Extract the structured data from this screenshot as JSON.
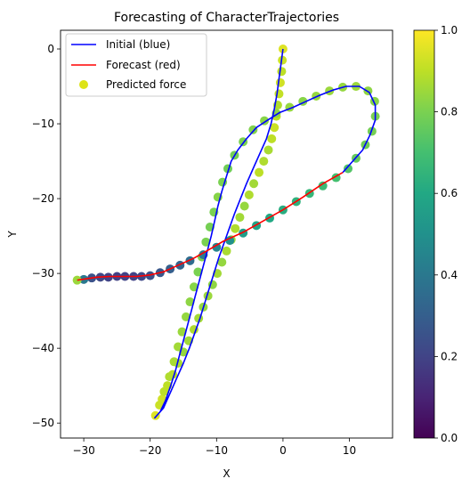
{
  "chart_data": {
    "type": "scatter",
    "title": "Forecasting of CharacterTrajectories",
    "xlabel": "X",
    "ylabel": "Y",
    "xlim": [
      -33.5,
      16.5
    ],
    "ylim": [
      -52,
      2.5
    ],
    "xticks": [
      -30,
      -20,
      -10,
      0,
      10
    ],
    "yticks": [
      0,
      -10,
      -20,
      -30,
      -40,
      -50
    ],
    "grid": false,
    "legend": {
      "placement": "top-left",
      "entries": [
        {
          "label": "Initial (blue)",
          "color": "#0000ff",
          "kind": "line"
        },
        {
          "label": "Forecast (red)",
          "color": "#ff0000",
          "kind": "line"
        },
        {
          "label": "Predicted force",
          "color": "#dde318",
          "kind": "marker"
        }
      ]
    },
    "colorbar": {
      "colormap": "viridis",
      "min": 0.0,
      "max": 1.0,
      "ticks": [
        "0.0",
        "0.2",
        "0.4",
        "0.6",
        "0.8",
        "1.0"
      ]
    },
    "series": [
      {
        "name": "Initial (blue)",
        "type": "line",
        "color": "#0000ff",
        "points": [
          [
            0,
            0
          ],
          [
            -0.3,
            -2
          ],
          [
            -0.6,
            -4
          ],
          [
            -0.9,
            -6
          ],
          [
            -1.3,
            -8
          ],
          [
            -1.8,
            -10
          ],
          [
            -2.5,
            -12
          ],
          [
            -3.5,
            -14
          ],
          [
            -4.5,
            -16
          ],
          [
            -5.5,
            -18
          ],
          [
            -6.4,
            -20
          ],
          [
            -7.3,
            -22
          ],
          [
            -8.1,
            -24
          ],
          [
            -8.9,
            -26
          ],
          [
            -9.7,
            -28
          ],
          [
            -10.4,
            -30
          ],
          [
            -11.1,
            -32
          ],
          [
            -11.8,
            -34
          ],
          [
            -12.5,
            -36
          ],
          [
            -13.3,
            -38
          ],
          [
            -14.1,
            -40
          ],
          [
            -15,
            -42
          ],
          [
            -16,
            -44
          ],
          [
            -17,
            -46
          ],
          [
            -18,
            -48
          ],
          [
            -19.3,
            -49.3
          ],
          [
            -19.3,
            -49.3
          ],
          [
            -18.5,
            -48.5
          ],
          [
            -17.7,
            -47
          ],
          [
            -16.9,
            -45
          ],
          [
            -16.2,
            -43
          ],
          [
            -15.6,
            -41
          ],
          [
            -15,
            -39
          ],
          [
            -14.4,
            -37
          ],
          [
            -13.8,
            -35
          ],
          [
            -13.2,
            -33
          ],
          [
            -12.6,
            -31
          ],
          [
            -12,
            -29
          ],
          [
            -11.4,
            -27
          ],
          [
            -10.8,
            -25
          ],
          [
            -10.3,
            -23
          ],
          [
            -9.8,
            -21
          ],
          [
            -9.2,
            -19
          ],
          [
            -8.5,
            -17
          ],
          [
            -7.8,
            -15
          ],
          [
            -6.8,
            -13.5
          ],
          [
            -5.5,
            -12
          ],
          [
            -4,
            -10.5
          ],
          [
            -2.3,
            -9.5
          ],
          [
            -0.5,
            -8.5
          ],
          [
            1.5,
            -7.8
          ],
          [
            3.5,
            -7
          ],
          [
            5.5,
            -6.2
          ],
          [
            7.5,
            -5.5
          ],
          [
            9.5,
            -5
          ],
          [
            11.5,
            -5
          ],
          [
            13,
            -5.8
          ],
          [
            13.9,
            -7.5
          ],
          [
            13.9,
            -9.5
          ],
          [
            13.1,
            -11.5
          ],
          [
            12,
            -13.5
          ],
          [
            10.5,
            -15
          ],
          [
            9,
            -16.5
          ]
        ]
      },
      {
        "name": "Forecast (red)",
        "type": "line",
        "color": "#ff0000",
        "points": [
          [
            9,
            -16.5
          ],
          [
            6,
            -18
          ],
          [
            3,
            -19.8
          ],
          [
            0,
            -21.5
          ],
          [
            -3,
            -23
          ],
          [
            -6,
            -24.5
          ],
          [
            -9,
            -25.7
          ],
          [
            -11.5,
            -27
          ],
          [
            -13.5,
            -28
          ],
          [
            -16,
            -29
          ],
          [
            -18,
            -29.8
          ],
          [
            -20,
            -30.2
          ],
          [
            -22,
            -30.4
          ],
          [
            -24,
            -30.4
          ],
          [
            -26,
            -30.4
          ],
          [
            -28,
            -30.5
          ],
          [
            -31,
            -30.9
          ]
        ]
      },
      {
        "name": "Predicted force",
        "type": "scatter",
        "x": [
          0,
          -0.1,
          -0.2,
          -0.4,
          -0.6,
          -0.8,
          -1,
          -1.3,
          -1.7,
          -2.2,
          -2.9,
          -3.6,
          -4.4,
          -5.1,
          -5.8,
          -6.5,
          -7.2,
          -7.8,
          -8.5,
          -9.2,
          -9.9,
          -10.6,
          -11.3,
          -12,
          -12.7,
          -13.4,
          -14.2,
          -15,
          -15.8,
          -16.6,
          -17.4,
          -18.2,
          -19.2,
          -18.6,
          -17.9,
          -17.1,
          -16.4,
          -15.8,
          -15.2,
          -14.6,
          -14,
          -13.4,
          -12.8,
          -12.2,
          -11.6,
          -11,
          -10.4,
          -9.8,
          -9.1,
          -8.3,
          -7.3,
          -6,
          -4.5,
          -2.8,
          -1,
          1,
          3,
          5,
          7,
          9,
          11,
          12.8,
          13.8,
          13.9,
          13.4,
          12.4,
          11,
          9.8,
          8,
          6,
          4,
          2,
          0,
          -2,
          -4,
          -6,
          -8,
          -10,
          -12,
          -14,
          -15.5,
          -17,
          -18.5,
          -20,
          -21.3,
          -22.5,
          -23.8,
          -25,
          -26.3,
          -27.5,
          -28.8,
          -30,
          -31
        ],
        "y": [
          0,
          -1.5,
          -3,
          -4.5,
          -6,
          -7.5,
          -9,
          -10.5,
          -12,
          -13.5,
          -15,
          -16.5,
          -18,
          -19.5,
          -21,
          -22.5,
          -24,
          -25.5,
          -27,
          -28.5,
          -30,
          -31.5,
          -33,
          -34.5,
          -36,
          -37.5,
          -39,
          -40.5,
          -42,
          -43.5,
          -45,
          -46.8,
          -49,
          -47.6,
          -45.8,
          -43.8,
          -41.8,
          -39.8,
          -37.8,
          -35.8,
          -33.8,
          -31.8,
          -29.8,
          -27.8,
          -25.8,
          -23.8,
          -21.8,
          -19.8,
          -17.8,
          -16,
          -14.2,
          -12.4,
          -10.8,
          -9.6,
          -8.6,
          -7.8,
          -7,
          -6.3,
          -5.6,
          -5.1,
          -5,
          -5.6,
          -7,
          -9,
          -11,
          -12.8,
          -14.6,
          -16,
          -17.2,
          -18.3,
          -19.3,
          -20.4,
          -21.5,
          -22.6,
          -23.6,
          -24.6,
          -25.6,
          -26.5,
          -27.5,
          -28.3,
          -28.9,
          -29.4,
          -29.9,
          -30.3,
          -30.4,
          -30.4,
          -30.4,
          -30.4,
          -30.5,
          -30.5,
          -30.6,
          -30.8,
          -30.9
        ],
        "force": [
          0.95,
          0.92,
          0.9,
          0.93,
          0.91,
          0.88,
          0.9,
          0.92,
          0.9,
          0.87,
          0.88,
          0.9,
          0.86,
          0.88,
          0.84,
          0.86,
          0.88,
          0.85,
          0.87,
          0.84,
          0.86,
          0.83,
          0.85,
          0.84,
          0.86,
          0.88,
          0.86,
          0.84,
          0.87,
          0.89,
          0.9,
          0.93,
          0.95,
          0.92,
          0.9,
          0.88,
          0.87,
          0.86,
          0.85,
          0.84,
          0.83,
          0.82,
          0.8,
          0.81,
          0.8,
          0.79,
          0.8,
          0.82,
          0.8,
          0.78,
          0.79,
          0.8,
          0.81,
          0.82,
          0.83,
          0.84,
          0.82,
          0.84,
          0.85,
          0.84,
          0.85,
          0.83,
          0.82,
          0.8,
          0.79,
          0.78,
          0.76,
          0.73,
          0.7,
          0.68,
          0.66,
          0.64,
          0.62,
          0.6,
          0.58,
          0.55,
          0.5,
          0.45,
          0.4,
          0.35,
          0.32,
          0.3,
          0.27,
          0.25,
          0.22,
          0.2,
          0.2,
          0.19,
          0.2,
          0.22,
          0.25,
          0.4,
          0.85
        ]
      }
    ]
  }
}
